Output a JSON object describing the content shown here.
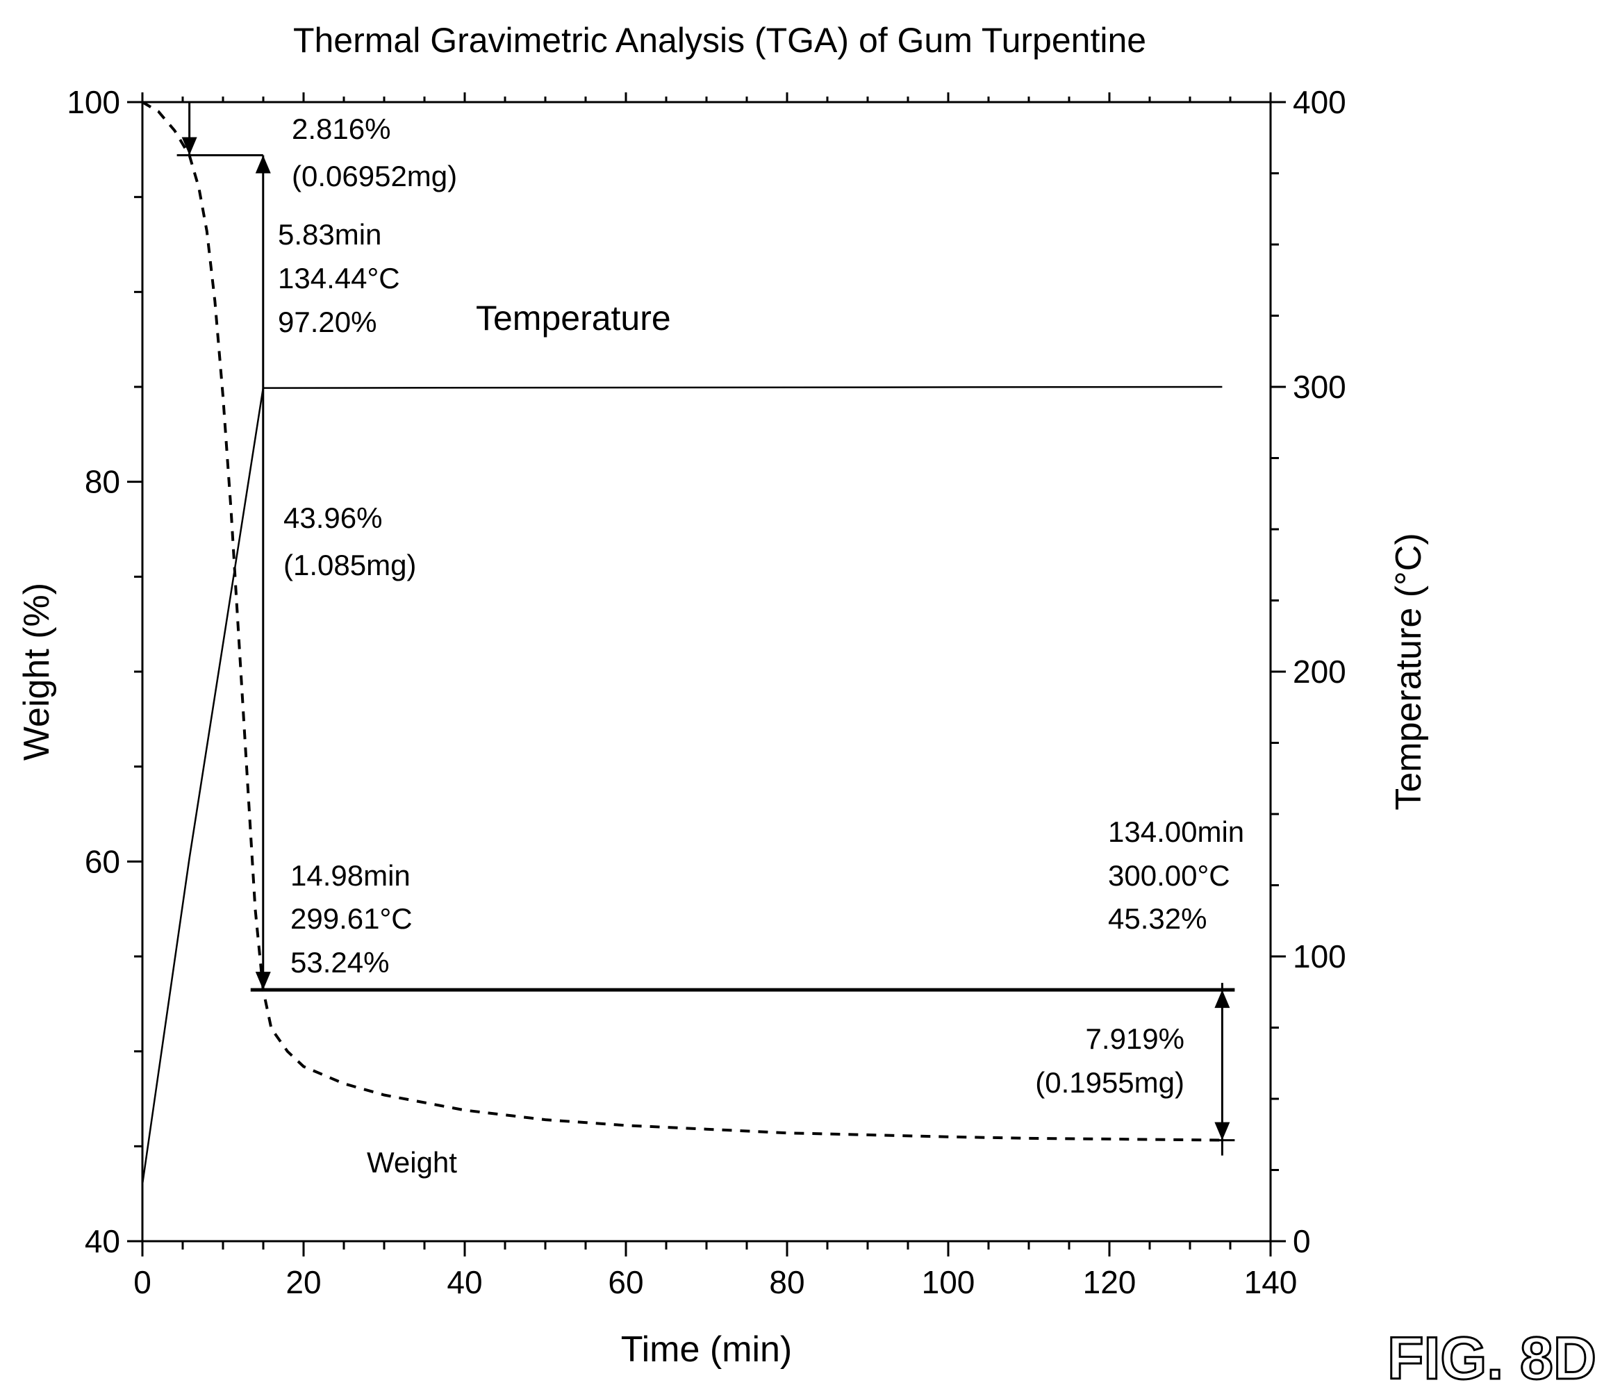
{
  "chart_data": {
    "type": "line",
    "title": "Thermal Gravimetric Analysis (TGA) of Gum Turpentine",
    "xlabel": "Time (min)",
    "ylabel_left": "Weight (%)",
    "ylabel_right": "Temperature (°C)",
    "xlim": [
      0,
      140
    ],
    "ylim_left": [
      40,
      100
    ],
    "ylim_right": [
      0,
      400
    ],
    "x_ticks": [
      "0",
      "20",
      "40",
      "60",
      "80",
      "100",
      "120",
      "140"
    ],
    "y_left_ticks": [
      "40",
      "60",
      "80",
      "100"
    ],
    "y_right_ticks": [
      "0",
      "100",
      "200",
      "300",
      "400"
    ],
    "grid": false,
    "figure_label": "FIG. 8D",
    "series": [
      {
        "name": "Weight",
        "axis": "left",
        "style": "dashed",
        "x": [
          0,
          2,
          4,
          5.83,
          7,
          8,
          9,
          10,
          11,
          12,
          13,
          14,
          14.98,
          16,
          18,
          20,
          25,
          30,
          40,
          50,
          60,
          70,
          80,
          90,
          100,
          110,
          120,
          134
        ],
        "y": [
          100,
          99.5,
          98.5,
          97.2,
          95.5,
          93.2,
          89.5,
          84.5,
          78.5,
          71.5,
          64.5,
          57.5,
          53.24,
          51.2,
          50.0,
          49.2,
          48.3,
          47.7,
          46.9,
          46.4,
          46.1,
          45.9,
          45.7,
          45.6,
          45.5,
          45.42,
          45.38,
          45.32
        ]
      },
      {
        "name": "Temperature",
        "axis": "right",
        "style": "solid",
        "x": [
          0,
          5.83,
          14.98,
          134
        ],
        "y": [
          20,
          134.44,
          299.61,
          300.0
        ]
      }
    ],
    "annotations": {
      "step1_loss": [
        "2.816%",
        "(0.06952mg)"
      ],
      "point1": [
        "5.83min",
        "134.44°C",
        "97.20%"
      ],
      "step2_loss": [
        "43.96%",
        "(1.085mg)"
      ],
      "point2": [
        "14.98min",
        "299.61°C",
        "53.24%"
      ],
      "point3": [
        "134.00min",
        "300.00°C",
        "45.32%"
      ],
      "step3_loss": [
        "7.919%",
        "(0.1955mg)"
      ]
    },
    "step_markers": [
      {
        "x_start": 5.83,
        "x_end": 14.98,
        "y_top": 97.2,
        "y_bottom": 53.24
      },
      {
        "x_start": 14.98,
        "x_end": 134,
        "y_top": 53.24,
        "y_bottom": 45.32
      }
    ]
  }
}
